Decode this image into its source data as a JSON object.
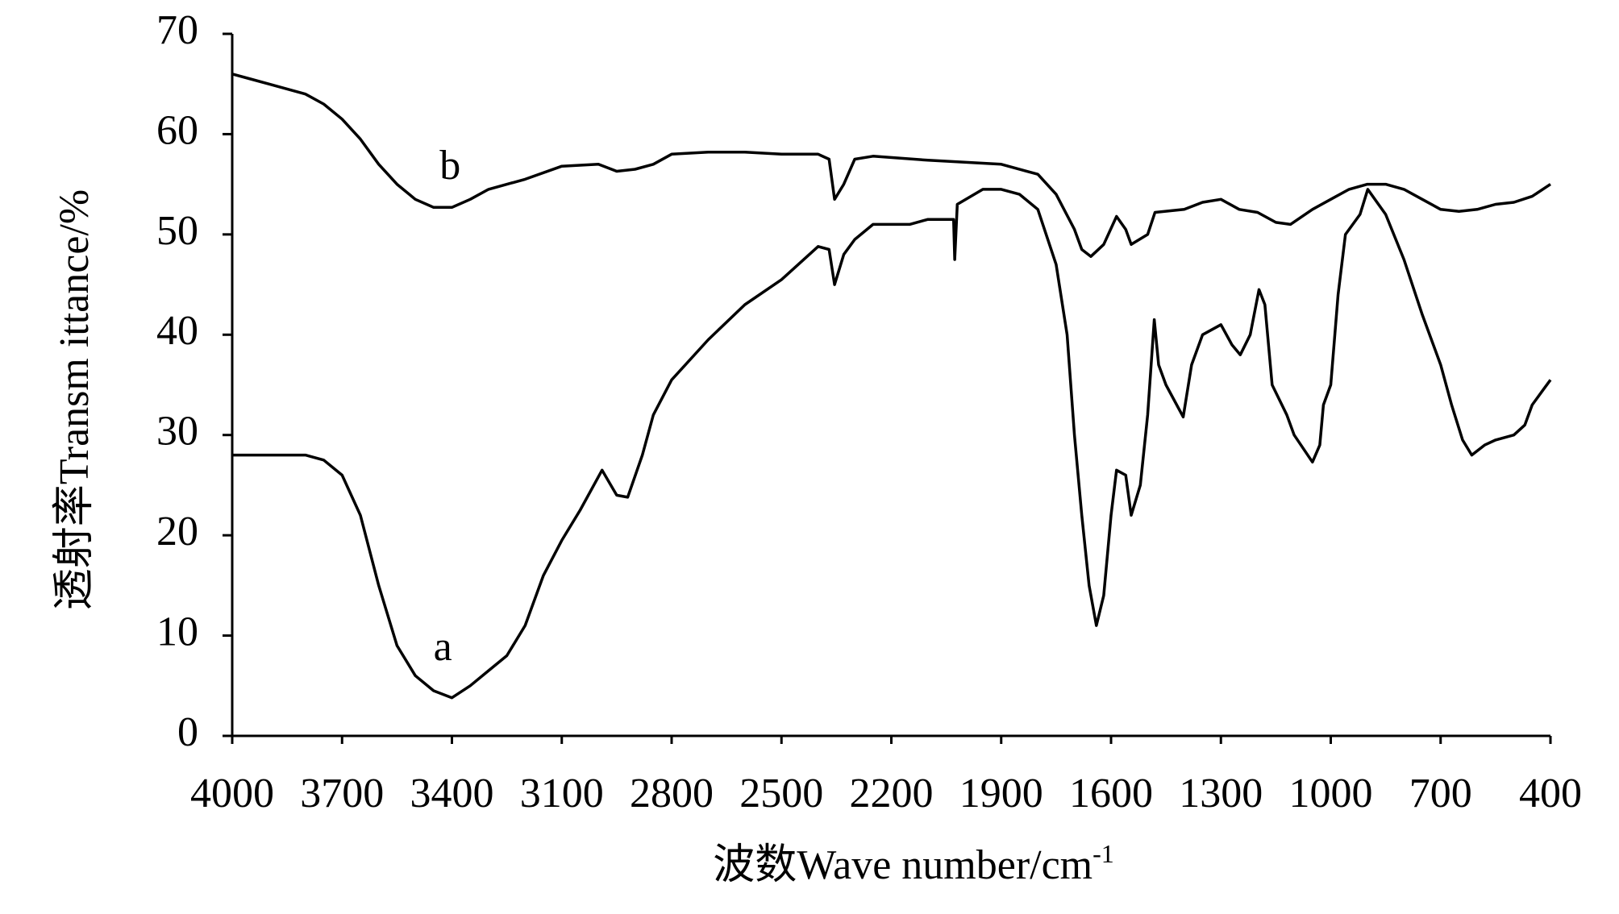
{
  "chart_data": {
    "type": "line",
    "x_label": "波数Wave number/cm",
    "x_label_superscript": "-1",
    "y_label": "透射率Transm ittance/%",
    "xlim": [
      4000,
      400
    ],
    "xticks": [
      4000,
      3700,
      3400,
      3100,
      2800,
      2500,
      2200,
      1900,
      1600,
      1300,
      1000,
      700,
      400
    ],
    "ylim": [
      0,
      70
    ],
    "yticks": [
      0,
      10,
      20,
      30,
      40,
      50,
      60,
      70
    ],
    "grid": false,
    "annotations": [
      {
        "text": "a",
        "x": 3425,
        "y": 8.5
      },
      {
        "text": "b",
        "x": 3405,
        "y": 56.5
      }
    ],
    "series": [
      {
        "color": "#000000",
        "x": [
          4000,
          3900,
          3800,
          3750,
          3700,
          3650,
          3600,
          3550,
          3500,
          3450,
          3400,
          3350,
          3300,
          3250,
          3200,
          3150,
          3100,
          3050,
          2990,
          2950,
          2920,
          2880,
          2850,
          2800,
          2700,
          2600,
          2500,
          2400,
          2370,
          2355,
          2330,
          2300,
          2250,
          2200,
          2150,
          2100,
          2030,
          2027,
          2020,
          1950,
          1900,
          1850,
          1800,
          1750,
          1720,
          1700,
          1680,
          1660,
          1640,
          1620,
          1600,
          1585,
          1560,
          1545,
          1520,
          1500,
          1482,
          1470,
          1450,
          1403,
          1380,
          1350,
          1300,
          1270,
          1247,
          1220,
          1196,
          1180,
          1160,
          1120,
          1100,
          1050,
          1030,
          1020,
          1000,
          980,
          960,
          920,
          899,
          850,
          800,
          750,
          700,
          670,
          640,
          615,
          580,
          550,
          500,
          470,
          450,
          420,
          400
        ],
        "values": [
          28,
          28,
          28,
          27.5,
          26,
          22,
          15,
          9,
          6,
          4.5,
          3.8,
          5,
          6.5,
          8,
          11,
          16,
          19.5,
          22.5,
          26.5,
          24,
          23.8,
          28,
          32,
          35.5,
          39.5,
          43,
          45.5,
          48.8,
          48.5,
          45,
          48,
          49.5,
          51,
          51,
          51,
          51.5,
          51.5,
          47.5,
          53,
          54.5,
          54.5,
          54,
          52.5,
          47,
          40,
          30,
          22,
          15,
          11,
          14,
          22,
          26.5,
          26,
          22,
          25,
          32,
          41.5,
          37,
          35,
          31.8,
          37,
          40,
          41,
          39,
          38,
          40,
          44.5,
          43,
          35,
          32,
          30,
          27.3,
          29,
          33,
          35,
          44,
          50,
          52,
          54.5,
          52,
          47.5,
          42,
          37,
          33,
          29.5,
          28,
          29,
          29.5,
          30,
          31,
          33,
          34.5,
          35.5
        ]
      },
      {
        "color": "#000000",
        "x": [
          4000,
          3950,
          3900,
          3850,
          3800,
          3750,
          3700,
          3650,
          3600,
          3550,
          3500,
          3450,
          3400,
          3350,
          3300,
          3200,
          3100,
          3000,
          2950,
          2900,
          2850,
          2800,
          2700,
          2600,
          2500,
          2400,
          2370,
          2355,
          2330,
          2300,
          2250,
          2100,
          2000,
          1900,
          1800,
          1750,
          1700,
          1680,
          1655,
          1620,
          1585,
          1560,
          1545,
          1500,
          1480,
          1400,
          1350,
          1300,
          1250,
          1200,
          1150,
          1110,
          1050,
          1000,
          950,
          900,
          850,
          800,
          750,
          700,
          650,
          600,
          550,
          500,
          450,
          400
        ],
        "values": [
          66,
          65.5,
          65,
          64.5,
          64,
          63,
          61.5,
          59.5,
          57,
          55,
          53.5,
          52.7,
          52.7,
          53.5,
          54.5,
          55.5,
          56.8,
          57,
          56.3,
          56.5,
          57,
          58,
          58.2,
          58.2,
          58,
          58,
          57.5,
          53.5,
          55,
          57.5,
          57.8,
          57.4,
          57.2,
          57,
          56,
          54,
          50.5,
          48.5,
          47.8,
          49,
          51.8,
          50.5,
          49,
          50,
          52.2,
          52.5,
          53.2,
          53.5,
          52.5,
          52.2,
          51.2,
          51,
          52.5,
          53.5,
          54.5,
          55,
          55,
          54.5,
          53.5,
          52.5,
          52.3,
          52.5,
          53,
          53.2,
          53.8,
          55
        ]
      }
    ]
  }
}
